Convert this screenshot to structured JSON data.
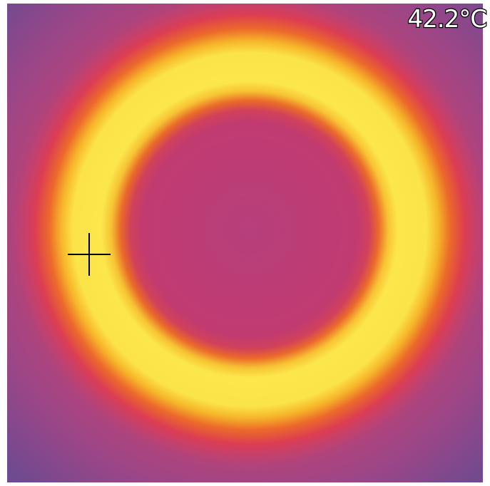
{
  "temperature_reading": "42.2°C"
}
